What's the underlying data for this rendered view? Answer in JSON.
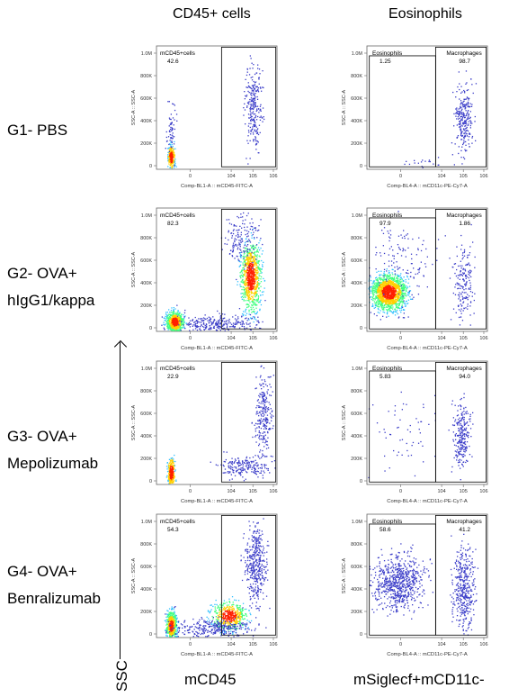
{
  "column_headers": [
    "CD45+ cells",
    "Eosinophils"
  ],
  "row_labels": [
    {
      "line1": "G1- PBS",
      "line2": ""
    },
    {
      "line1": "G2- OVA+",
      "line2": "hIgG1/kappa"
    },
    {
      "line1": "G3- OVA+",
      "line2": "Mepolizumab"
    },
    {
      "line1": "G4- OVA+",
      "line2": "Benralizumab"
    }
  ],
  "axis_y_label": "SSC",
  "bottom_x_labels": [
    "mCD45",
    "mSiglecf+mCD11c-"
  ],
  "colors": {
    "dots": "#3a3cc8",
    "gate": "#000000",
    "density_hot": "#ff2000",
    "density_warm": "#ffd000",
    "density_mid": "#30c0ff"
  },
  "chart_data": [
    {
      "type": "scatter",
      "group": "G1- PBS",
      "panel": "CD45+ cells",
      "ylabel": "SSC-A :: SSC-A",
      "xlabel": "Comp-BL1-A :: mCD45-FITC-A",
      "yticks": [
        "1.0M",
        "800K",
        "600K",
        "400K",
        "200K",
        "0"
      ],
      "xticks": [
        "0",
        "10^4",
        "10^5",
        "10^6"
      ],
      "gates": [
        {
          "name": "mCD45+cells",
          "percent": "42.6"
        }
      ]
    },
    {
      "type": "scatter",
      "group": "G1- PBS",
      "panel": "Eosinophils",
      "ylabel": "SSC-A :: SSC-A",
      "xlabel": "Comp-BL4-A :: mCD11c-PE-Cy7-A",
      "yticks": [
        "1.0M",
        "800K",
        "600K",
        "400K",
        "200K",
        "0"
      ],
      "xticks": [
        "0",
        "10^4",
        "10^5",
        "10^6"
      ],
      "gates": [
        {
          "name": "Eosinophils",
          "percent": "1.25"
        },
        {
          "name": "Macrophages",
          "percent": "98.7"
        }
      ]
    },
    {
      "type": "scatter",
      "group": "G2- OVA+ hIgG1/kappa",
      "panel": "CD45+ cells",
      "ylabel": "SSC-A :: SSC-A",
      "xlabel": "Comp-BL1-A :: mCD45-FITC-A",
      "yticks": [
        "1.0M",
        "800K",
        "600K",
        "400K",
        "200K",
        "0"
      ],
      "xticks": [
        "0",
        "10^4",
        "10^5",
        "10^6"
      ],
      "gates": [
        {
          "name": "mCD45+cells",
          "percent": "82.3"
        }
      ]
    },
    {
      "type": "scatter",
      "group": "G2- OVA+ hIgG1/kappa",
      "panel": "Eosinophils",
      "ylabel": "SSC-A :: SSC-A",
      "xlabel": "Comp-BL4-A :: mCD11c-PE-Cy7-A",
      "yticks": [
        "1.0M",
        "800K",
        "600K",
        "400K",
        "200K",
        "0"
      ],
      "xticks": [
        "0",
        "10^4",
        "10^5",
        "10^6"
      ],
      "gates": [
        {
          "name": "Eosinophils",
          "percent": "97.9"
        },
        {
          "name": "Macrophages",
          "percent": "1.86"
        }
      ]
    },
    {
      "type": "scatter",
      "group": "G3- OVA+ Mepolizumab",
      "panel": "CD45+ cells",
      "ylabel": "SSC-A :: SSC-A",
      "xlabel": "Comp-BL1-A :: mCD45-FITC-A",
      "yticks": [
        "1.0M",
        "800K",
        "600K",
        "400K",
        "200K",
        "0"
      ],
      "xticks": [
        "0",
        "10^4",
        "10^5",
        "10^6"
      ],
      "gates": [
        {
          "name": "mCD45+cells",
          "percent": "22.9"
        }
      ]
    },
    {
      "type": "scatter",
      "group": "G3- OVA+ Mepolizumab",
      "panel": "Eosinophils",
      "ylabel": "SSC-A :: SSC-A",
      "xlabel": "Comp-BL4-A :: mCD11c-PE-Cy7-A",
      "yticks": [
        "1.0M",
        "800K",
        "600K",
        "400K",
        "200K",
        "0"
      ],
      "xticks": [
        "0",
        "10^4",
        "10^5",
        "10^6"
      ],
      "gates": [
        {
          "name": "Eosinophils",
          "percent": "5.83"
        },
        {
          "name": "Macrophages",
          "percent": "94.0"
        }
      ]
    },
    {
      "type": "scatter",
      "group": "G4- OVA+ Benralizumab",
      "panel": "CD45+ cells",
      "ylabel": "SSC-A :: SSC-A",
      "xlabel": "Comp-BL1-A :: mCD45-FITC-A",
      "yticks": [
        "1.0M",
        "800K",
        "600K",
        "400K",
        "200K",
        "0"
      ],
      "xticks": [
        "0",
        "10^4",
        "10^5",
        "10^6"
      ],
      "gates": [
        {
          "name": "mCD45+cells",
          "percent": "54.3"
        }
      ]
    },
    {
      "type": "scatter",
      "group": "G4- OVA+ Benralizumab",
      "panel": "Eosinophils",
      "ylabel": "SSC-A :: SSC-A",
      "xlabel": "Comp-BL4-A :: mCD11c-PE-Cy7-A",
      "yticks": [
        "1.0M",
        "800K",
        "600K",
        "400K",
        "200K",
        "0"
      ],
      "xticks": [
        "0",
        "10^4",
        "10^5",
        "10^6"
      ],
      "gates": [
        {
          "name": "Eosinophils",
          "percent": "58.6"
        },
        {
          "name": "Macrophages",
          "percent": "41.2"
        }
      ]
    }
  ]
}
